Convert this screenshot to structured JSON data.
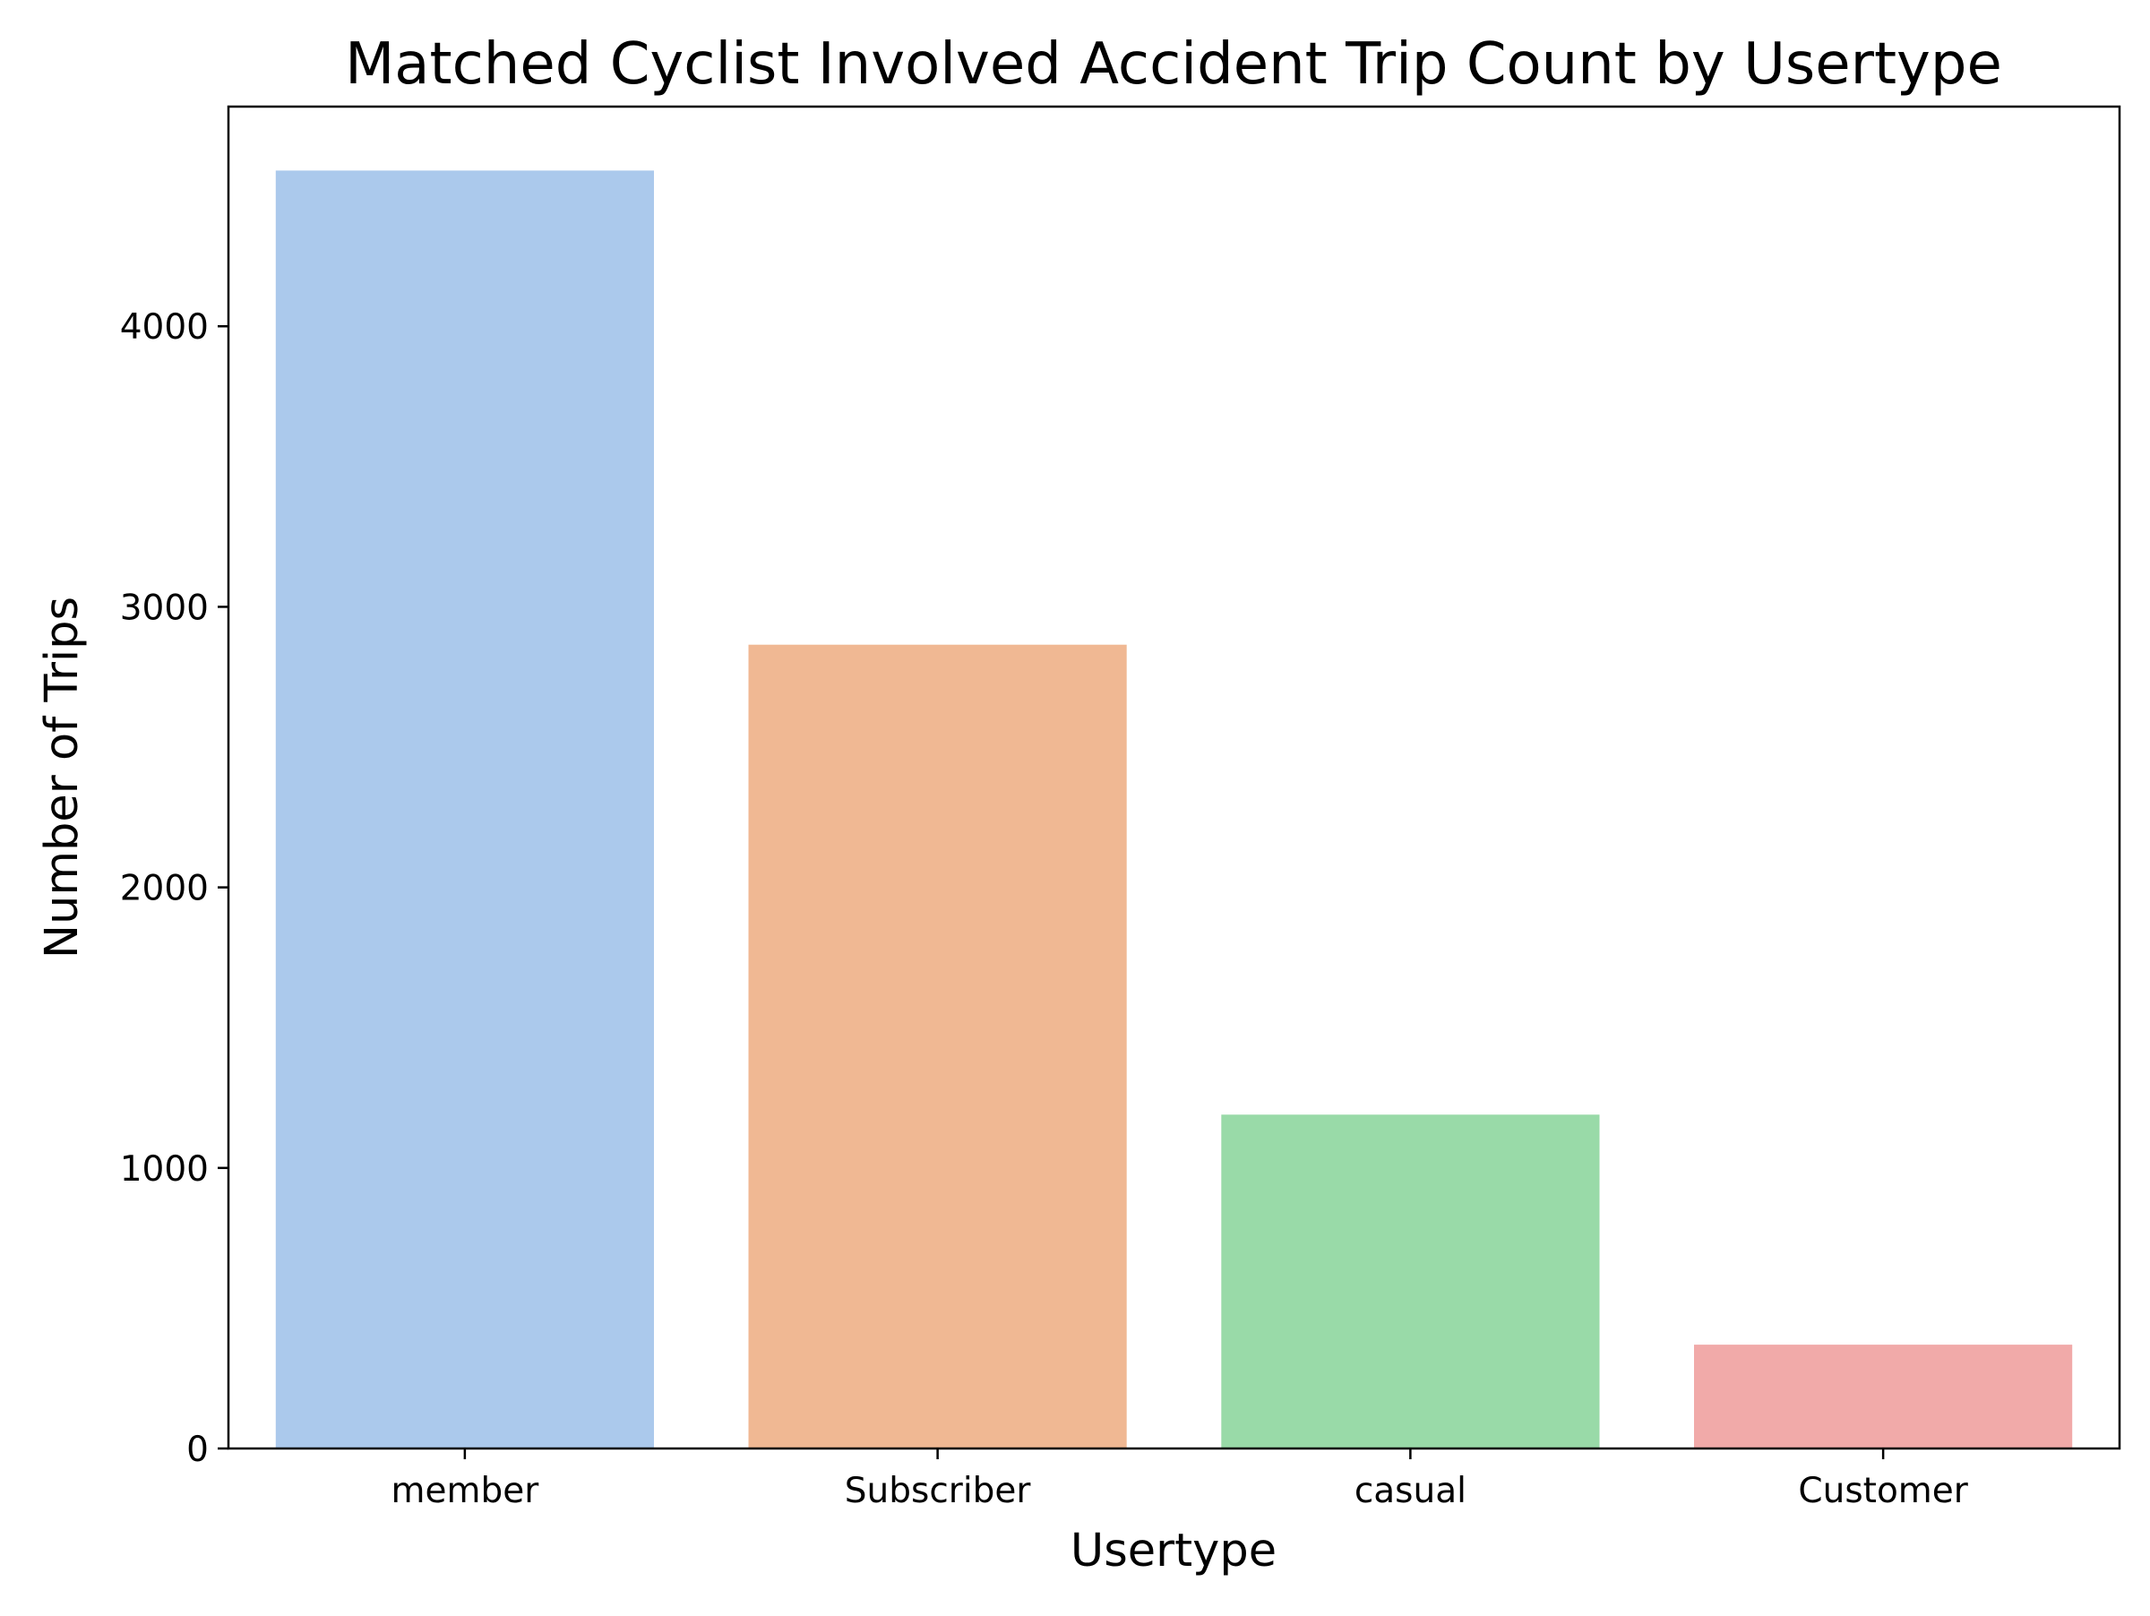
{
  "chart_data": {
    "type": "bar",
    "title": "Matched Cyclist Involved Accident Trip Count by Usertype",
    "xlabel": "Usertype",
    "ylabel": "Number of Trips",
    "categories": [
      "member",
      "Subscriber",
      "casual",
      "Customer"
    ],
    "values": [
      4555,
      2865,
      1190,
      370
    ],
    "colors": [
      "#abc9ec",
      "#f0b893",
      "#99daa8",
      "#f1aaa9"
    ],
    "ylim": [
      0,
      4783
    ],
    "yticks": [
      0,
      1000,
      2000,
      3000,
      4000
    ],
    "grid": false,
    "legend": "none"
  }
}
